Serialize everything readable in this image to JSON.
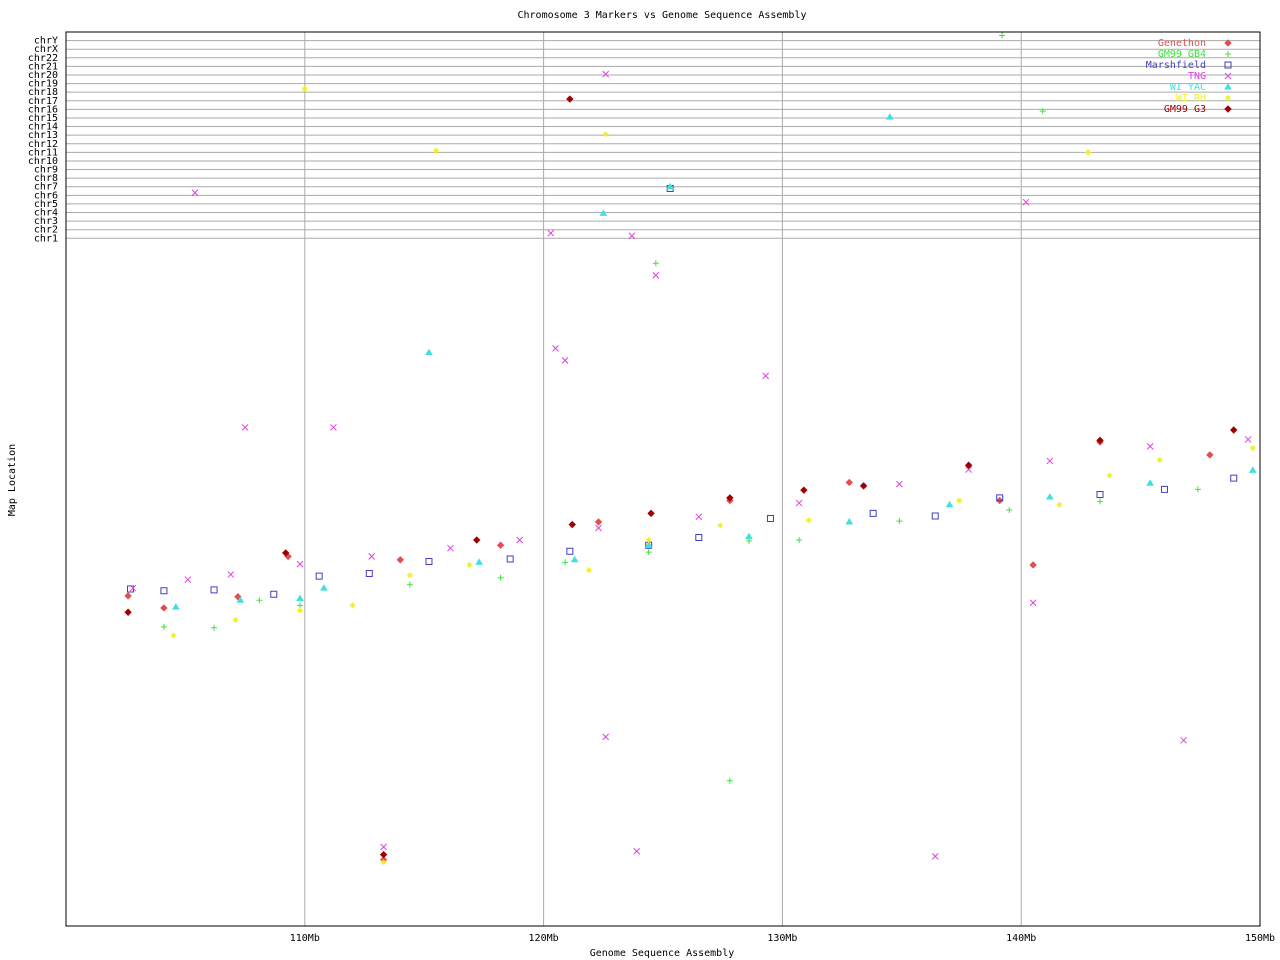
{
  "chart_data": {
    "type": "scatter",
    "title": "Chromosome 3 Markers vs Genome Sequence Assembly",
    "x_label": "Genome Sequence Assembly",
    "y_label": "Map Location",
    "xlim": [
      100,
      150
    ],
    "xticks": [
      {
        "value": 110,
        "label": "110Mb"
      },
      {
        "value": 120,
        "label": "120Mb"
      },
      {
        "value": 130,
        "label": "130Mb"
      },
      {
        "value": 140,
        "label": "140Mb"
      },
      {
        "value": 150,
        "label": "150Mb"
      }
    ],
    "ylim": [
      0,
      104
    ],
    "yticks": [
      {
        "value": 80,
        "label": "chr1"
      },
      {
        "value": 81,
        "label": "chr2"
      },
      {
        "value": 82,
        "label": "chr3"
      },
      {
        "value": 83,
        "label": "chr4"
      },
      {
        "value": 84,
        "label": "chr5"
      },
      {
        "value": 85,
        "label": "chr6"
      },
      {
        "value": 86,
        "label": "chr7"
      },
      {
        "value": 87,
        "label": "chr8"
      },
      {
        "value": 88,
        "label": "chr9"
      },
      {
        "value": 89,
        "label": "chr10"
      },
      {
        "value": 90,
        "label": "chr11"
      },
      {
        "value": 91,
        "label": "chr12"
      },
      {
        "value": 92,
        "label": "chr13"
      },
      {
        "value": 93,
        "label": "chr14"
      },
      {
        "value": 94,
        "label": "chr15"
      },
      {
        "value": 95,
        "label": "chr16"
      },
      {
        "value": 96,
        "label": "chr17"
      },
      {
        "value": 97,
        "label": "chr18"
      },
      {
        "value": 98,
        "label": "chr19"
      },
      {
        "value": 99,
        "label": "chr20"
      },
      {
        "value": 100,
        "label": "chr21"
      },
      {
        "value": 101,
        "label": "chr22"
      },
      {
        "value": 102,
        "label": "chrX"
      },
      {
        "value": 103,
        "label": "chrY"
      }
    ],
    "grid": true,
    "legend": "top-right",
    "series": [
      {
        "name": "Genethon",
        "color": "#e05050",
        "marker": "diamond",
        "x": [
          102.6,
          104.1,
          107.2,
          109.3,
          114.0,
          118.2,
          122.3,
          127.8,
          132.8,
          139.1,
          143.3,
          147.9,
          140.5,
          113.3
        ],
        "values": [
          38.4,
          37.0,
          38.3,
          43.0,
          42.6,
          44.3,
          47.0,
          49.5,
          51.6,
          49.5,
          56.3,
          54.8,
          42.0,
          7.7
        ]
      },
      {
        "name": "GM99 GB4",
        "color": "#40e040",
        "marker": "plus",
        "x": [
          104.1,
          106.2,
          108.1,
          109.8,
          114.4,
          118.2,
          120.9,
          124.4,
          128.6,
          130.7,
          134.9,
          139.5,
          143.3,
          147.4,
          139.2,
          124.7,
          127.8,
          140.9
        ],
        "values": [
          34.8,
          34.7,
          37.9,
          37.3,
          39.7,
          40.5,
          42.3,
          43.5,
          44.8,
          44.9,
          47.1,
          48.4,
          49.4,
          50.8,
          103.6,
          77.1,
          16.9,
          94.8
        ]
      },
      {
        "name": "Marshfield",
        "color": "#4040c0",
        "marker": "square",
        "x": [
          102.7,
          104.1,
          106.2,
          108.7,
          110.6,
          112.7,
          115.2,
          118.6,
          121.1,
          124.4,
          126.5,
          129.5,
          133.8,
          136.4,
          139.1,
          143.3,
          146.0,
          148.9,
          125.3
        ],
        "values": [
          39.2,
          39.0,
          39.1,
          38.6,
          40.7,
          41.0,
          42.4,
          42.7,
          43.6,
          44.3,
          45.2,
          47.4,
          48.0,
          47.7,
          49.8,
          50.2,
          50.8,
          52.1,
          85.8
        ]
      },
      {
        "name": "TNG",
        "color": "#e040e0",
        "marker": "cross",
        "x": [
          102.8,
          105.1,
          106.9,
          109.8,
          112.8,
          116.1,
          119.0,
          122.3,
          126.5,
          130.7,
          134.9,
          137.8,
          141.2,
          145.4,
          149.5,
          105.4,
          107.5,
          111.2,
          120.3,
          122.6,
          123.7,
          124.7,
          120.5,
          129.3,
          122.6,
          123.9,
          136.4,
          140.5,
          146.8,
          113.3,
          140.2,
          120.9
        ],
        "values": [
          39.3,
          40.3,
          40.9,
          42.1,
          43.0,
          43.95,
          44.9,
          46.3,
          47.6,
          49.2,
          51.4,
          53.1,
          54.1,
          55.8,
          56.6,
          85.3,
          58.0,
          58.0,
          80.6,
          99.1,
          80.3,
          75.7,
          67.2,
          64.0,
          22.0,
          8.7,
          8.1,
          37.6,
          21.6,
          9.2,
          84.2,
          65.8
        ]
      },
      {
        "name": "WI YAC",
        "color": "#40e0e0",
        "marker": "triangle",
        "x": [
          104.6,
          107.3,
          109.8,
          110.8,
          115.2,
          117.3,
          121.3,
          124.4,
          128.6,
          132.8,
          137.0,
          141.2,
          145.4,
          149.7,
          122.5,
          125.3,
          134.5
        ],
        "values": [
          37.1,
          37.9,
          38.1,
          39.3,
          66.7,
          42.3,
          42.6,
          44.3,
          45.3,
          47.0,
          49.0,
          49.9,
          51.5,
          53.0,
          82.9,
          86.0,
          94.1
        ]
      },
      {
        "name": "WI RH",
        "color": "#f0f020",
        "marker": "star",
        "x": [
          104.5,
          107.1,
          109.8,
          112.0,
          114.4,
          116.9,
          121.9,
          124.4,
          127.4,
          131.1,
          137.4,
          141.6,
          143.7,
          145.8,
          149.7,
          110.0,
          115.5,
          122.6,
          142.8,
          113.3
        ],
        "values": [
          33.8,
          35.6,
          36.7,
          37.3,
          40.8,
          42.0,
          41.4,
          44.9,
          46.6,
          47.2,
          49.5,
          49.0,
          52.4,
          54.2,
          55.6,
          97.4,
          90.2,
          92.1,
          90.0,
          7.4
        ]
      },
      {
        "name": "GM99 G3",
        "color": "#a00000",
        "marker": "diamond",
        "x": [
          102.6,
          109.2,
          117.2,
          121.2,
          124.5,
          127.8,
          130.9,
          133.4,
          137.8,
          143.3,
          148.9,
          121.1,
          113.3
        ],
        "values": [
          36.5,
          43.4,
          44.9,
          46.7,
          48.0,
          49.8,
          50.7,
          51.2,
          53.6,
          56.5,
          57.7,
          96.2,
          8.3
        ]
      }
    ]
  }
}
